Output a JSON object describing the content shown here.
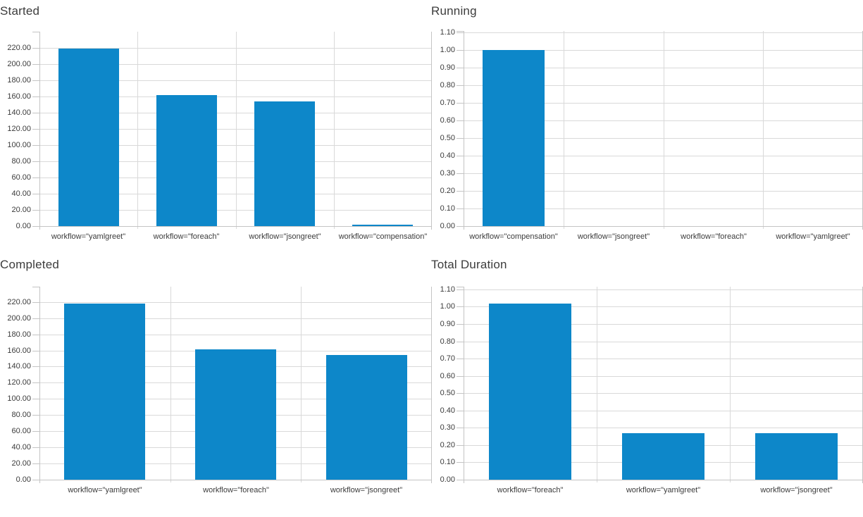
{
  "colors": {
    "bar": "#0d87c9",
    "grid": "#d9d9d9",
    "axis": "#c4c4c4",
    "tick_label": "#3b3b3b",
    "title": "#3c3c3c",
    "background": "#ffffff"
  },
  "chart_data": [
    {
      "id": "started",
      "type": "bar",
      "title": "Started",
      "categories": [
        "workflow=\"yamlgreet\"",
        "workflow=\"foreach\"",
        "workflow=\"jsongreet\"",
        "workflow=\"compensation\""
      ],
      "values": [
        219,
        162,
        154,
        2
      ],
      "xlabel": "",
      "ylabel": "",
      "y_ticks": {
        "min": 0,
        "max": 220,
        "step": 20,
        "decimals": 2
      },
      "ylim": [
        0,
        240
      ],
      "grid": true,
      "legend": "none"
    },
    {
      "id": "running",
      "type": "bar",
      "title": "Running",
      "categories": [
        "workflow=\"compensation\"",
        "workflow=\"jsongreet\"",
        "workflow=\"foreach\"",
        "workflow=\"yamlgreet\""
      ],
      "values": [
        1.0,
        0,
        0,
        0
      ],
      "xlabel": "",
      "ylabel": "",
      "y_ticks": {
        "min": 0,
        "max": 1.1,
        "step": 0.1,
        "decimals": 2
      },
      "ylim": [
        0,
        1.108
      ],
      "grid": true,
      "legend": "none"
    },
    {
      "id": "completed",
      "type": "bar",
      "title": "Completed",
      "categories": [
        "workflow=\"yamlgreet\"",
        "workflow=\"foreach\"",
        "workflow=\"jsongreet\""
      ],
      "values": [
        218,
        161,
        154
      ],
      "xlabel": "",
      "ylabel": "",
      "y_ticks": {
        "min": 0,
        "max": 220,
        "step": 20,
        "decimals": 2
      },
      "ylim": [
        0,
        239
      ],
      "grid": true,
      "legend": "none"
    },
    {
      "id": "total-duration",
      "type": "bar",
      "title": "Total Duration",
      "categories": [
        "workflow=\"foreach\"",
        "workflow=\"yamlgreet\"",
        "workflow=\"jsongreet\""
      ],
      "values": [
        1.02,
        0.27,
        0.27
      ],
      "xlabel": "",
      "ylabel": "",
      "y_ticks": {
        "min": 0,
        "max": 1.1,
        "step": 0.1,
        "decimals": 2
      },
      "ylim": [
        0,
        1.116
      ],
      "grid": true,
      "legend": "none"
    }
  ]
}
